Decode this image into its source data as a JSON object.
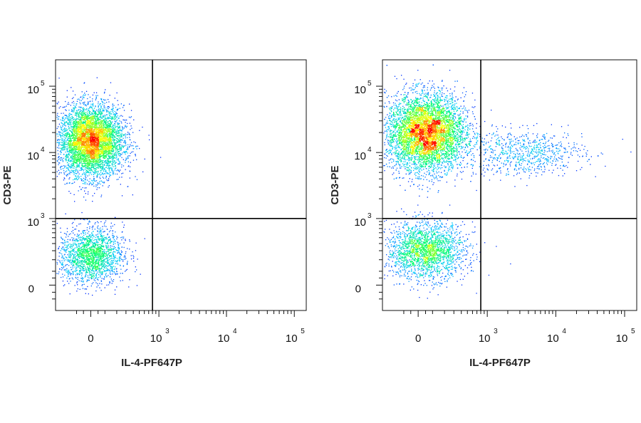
{
  "chart_data": [
    {
      "type": "scatter",
      "xlabel": "IL-4-PF647P",
      "ylabel": "CD3-PE",
      "x_scale": "biexponential",
      "y_scale": "biexponential",
      "xlim": [
        -300,
        150000
      ],
      "ylim": [
        -200,
        250000
      ],
      "x_ticks": [
        {
          "value": 0,
          "base": "0",
          "exp": ""
        },
        {
          "value": 1000,
          "base": "10",
          "exp": "3"
        },
        {
          "value": 10000,
          "base": "10",
          "exp": "4"
        },
        {
          "value": 100000,
          "base": "10",
          "exp": "5"
        }
      ],
      "y_ticks": [
        {
          "value": 0,
          "base": "0",
          "exp": ""
        },
        {
          "value": 1000,
          "base": "10",
          "exp": "3"
        },
        {
          "value": 10000,
          "base": "10",
          "exp": "4"
        },
        {
          "value": 100000,
          "base": "10",
          "exp": "5"
        }
      ],
      "quadrant_gate": {
        "x": 800,
        "y": 1000
      },
      "populations": [
        {
          "name": "",
          "x_center": 0,
          "y_center": 15000,
          "x_spread": 0.25,
          "y_spread": 0.28,
          "count": 5200
        },
        {
          "name": "",
          "x_center": 0,
          "y_center": 250,
          "x_spread": 0.25,
          "y_spread": 0.22,
          "count": 1900
        }
      ]
    },
    {
      "type": "scatter",
      "xlabel": "IL-4-PF647P",
      "ylabel": "CD3-PE",
      "x_scale": "biexponential",
      "y_scale": "biexponential",
      "xlim": [
        -300,
        150000
      ],
      "ylim": [
        -200,
        250000
      ],
      "x_ticks": [
        {
          "value": 0,
          "base": "0",
          "exp": ""
        },
        {
          "value": 1000,
          "base": "10",
          "exp": "3"
        },
        {
          "value": 10000,
          "base": "10",
          "exp": "4"
        },
        {
          "value": 100000,
          "base": "10",
          "exp": "5"
        }
      ],
      "y_ticks": [
        {
          "value": 0,
          "base": "0",
          "exp": ""
        },
        {
          "value": 1000,
          "base": "10",
          "exp": "3"
        },
        {
          "value": 10000,
          "base": "10",
          "exp": "4"
        },
        {
          "value": 100000,
          "base": "10",
          "exp": "5"
        }
      ],
      "quadrant_gate": {
        "x": 800,
        "y": 1000
      },
      "populations": [
        {
          "name": "",
          "x_center": 50,
          "y_center": 20000,
          "x_spread": 0.3,
          "y_spread": 0.3,
          "count": 6000
        },
        {
          "name": "",
          "x_center": 50,
          "y_center": 300,
          "x_spread": 0.3,
          "y_spread": 0.22,
          "count": 2200
        },
        {
          "name": "",
          "x_center": 3500,
          "y_center": 10000,
          "x_spread": 0.45,
          "y_spread": 0.18,
          "count": 750
        }
      ]
    }
  ],
  "colors": {
    "density_low": "#0000ff",
    "density_mid": "#00ff66",
    "density_high": "#ff0000",
    "gate": "#000000"
  }
}
